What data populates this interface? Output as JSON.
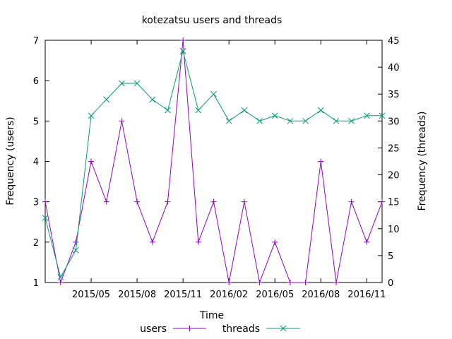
{
  "chart_data": {
    "type": "line",
    "title": "kotezatsu users and threads",
    "xlabel": "Time",
    "ylabel_left": "Frequency (users)",
    "ylabel_right": "Frequency (threads)",
    "ylim_left": [
      1,
      7
    ],
    "ylim_right": [
      0,
      45
    ],
    "yticks_left": [
      "1",
      "2",
      "3",
      "4",
      "5",
      "6",
      "7"
    ],
    "yticks_right": [
      "0",
      "5",
      "10",
      "15",
      "20",
      "25",
      "30",
      "35",
      "40",
      "45"
    ],
    "x": [
      "2015-02",
      "2015-03",
      "2015-04",
      "2015-05",
      "2015-06",
      "2015-07",
      "2015-08",
      "2015-09",
      "2015-10",
      "2015-11",
      "2015-12",
      "2016-01",
      "2016-02",
      "2016-03",
      "2016-04",
      "2016-05",
      "2016-06",
      "2016-07",
      "2016-08",
      "2016-09",
      "2016-10",
      "2016-11",
      "2016-12"
    ],
    "xticks": [
      "2015/05",
      "2015/08",
      "2015/11",
      "2016/02",
      "2016/05",
      "2016/08",
      "2016/11"
    ],
    "grid": false,
    "legend_position": "bottom-center",
    "series": [
      {
        "name": "users",
        "axis": "left",
        "color": "#9400d3",
        "marker": "plus",
        "values": [
          3,
          1,
          2,
          4,
          3,
          5,
          3,
          2,
          3,
          7,
          2,
          3,
          1,
          3,
          1,
          2,
          1,
          1,
          4,
          1,
          3,
          2,
          3
        ]
      },
      {
        "name": "threads",
        "axis": "right",
        "color": "#009e73",
        "marker": "cross",
        "values": [
          12,
          1,
          6,
          31,
          34,
          37,
          37,
          34,
          32,
          43,
          32,
          35,
          30,
          32,
          30,
          31,
          30,
          30,
          32,
          30,
          30,
          31,
          31
        ]
      }
    ]
  }
}
